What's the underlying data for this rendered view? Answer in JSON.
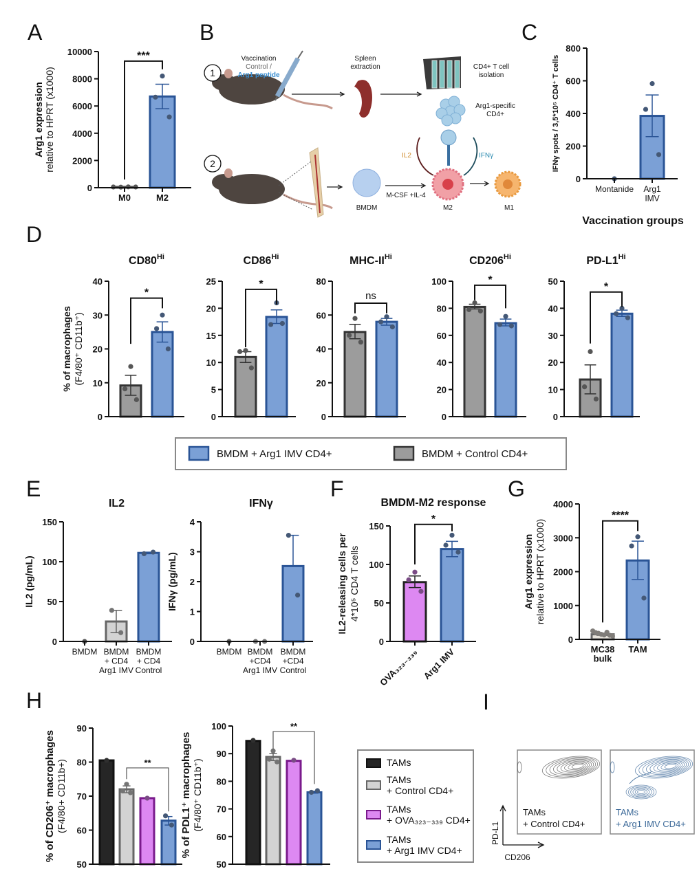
{
  "panel_letters": [
    "A",
    "B",
    "C",
    "D",
    "E",
    "F",
    "G",
    "H",
    "I"
  ],
  "colors": {
    "arg1_imv_fill": "#7ba0d6",
    "arg1_imv_stroke": "#2a5496",
    "control_fill": "#9c9c9c",
    "control_stroke": "#333333",
    "light_grey_fill": "#d3d3d3",
    "light_grey_stroke": "#666666",
    "ova_fill": "#dd88f2",
    "ova_stroke": "#7a1a8c",
    "tams_fill": "#262626"
  },
  "panel_B": {
    "step1": "1",
    "step2": "2",
    "vaccination": "Vaccination",
    "control": "Control /",
    "arg1_peptide": "Arg1 peptide",
    "spleen": [
      "Spleen",
      "extraction"
    ],
    "cd4_isolation": [
      "CD4+ T cell",
      "isolation"
    ],
    "arg1_specific": [
      "Arg1-specific",
      "CD4+"
    ],
    "il2": "IL2",
    "ifng": "IFNγ",
    "bmdm": "BMDM",
    "mcsf": "M-CSF +IL-4",
    "m2": "M2",
    "m1": "M1"
  },
  "legend_D": [
    {
      "label": "BMDM + Arg1 IMV CD4+",
      "fill": "#7ba0d6",
      "stroke": "#2a5496"
    },
    {
      "label": "BMDM + Control CD4+",
      "fill": "#9c9c9c",
      "stroke": "#333333"
    }
  ],
  "legend_H": [
    {
      "lines": [
        "TAMs"
      ],
      "fill": "#262626",
      "stroke": "#111111"
    },
    {
      "lines": [
        "TAMs",
        "+ Control CD4+"
      ],
      "fill": "#d3d3d3",
      "stroke": "#666666"
    },
    {
      "lines": [
        "TAMs",
        "+ OVA₃₂₃₋₃₃₉ CD4+"
      ],
      "fill": "#dd88f2",
      "stroke": "#7a1a8c"
    },
    {
      "lines": [
        "TAMs",
        "+ Arg1 IMV CD4+"
      ],
      "fill": "#7ba0d6",
      "stroke": "#2a5496"
    }
  ],
  "panel_I": {
    "y_axis": "PD-L1",
    "x_axis": "CD206",
    "plots": [
      {
        "lines": [
          "TAMs",
          "+ Control CD4+"
        ],
        "color": "#555555"
      },
      {
        "lines": [
          "TAMs",
          "+ Arg1 IMV CD4+"
        ],
        "color": "#3d6a99"
      }
    ]
  },
  "chart_data": [
    {
      "panel": "A",
      "type": "bar",
      "title": "",
      "title_sup": "",
      "ylabel": [
        "Arg1 expression",
        "relative to HPRT (x1000)"
      ],
      "ylim": [
        0,
        10000
      ],
      "yticks": [
        0,
        2000,
        4000,
        6000,
        8000,
        10000
      ],
      "categories": [
        [
          "M0"
        ],
        [
          "M2"
        ]
      ],
      "category_style": "bold",
      "bars": [
        {
          "value": 60,
          "error": [
            40,
            80
          ],
          "points": [
            50,
            40,
            60,
            50
          ],
          "fill": "#9c9c9c",
          "stroke": "#555555"
        },
        {
          "value": 6700,
          "error": [
            5800,
            7600
          ],
          "points": [
            8200,
            6650,
            5200
          ],
          "fill": "#7ba0d6",
          "stroke": "#2a5496"
        }
      ],
      "significance": {
        "label": "***",
        "from": 0,
        "to": 1,
        "level": 9300,
        "feet": [
          600,
          8700
        ]
      }
    },
    {
      "panel": "C",
      "type": "bar",
      "title": "",
      "title_sup": "",
      "ylabel": [
        "IFNγ spots / 3,5*10⁵ CD4⁺ T cells"
      ],
      "xlabel": "Vaccination groups",
      "ylim": [
        0,
        800
      ],
      "yticks": [
        0,
        200,
        400,
        600,
        800
      ],
      "categories": [
        [
          "Montanide"
        ],
        [
          "Arg1",
          "IMV"
        ]
      ],
      "category_style": "normal",
      "bars": [
        {
          "value": 0,
          "error": [
            0,
            0
          ],
          "points": [
            0
          ],
          "fill": "#7ba0d6",
          "stroke": "#2a5496"
        },
        {
          "value": 385,
          "error": [
            258,
            513
          ],
          "points": [
            583,
            425,
            148
          ],
          "fill": "#7ba0d6",
          "stroke": "#2a5496"
        }
      ]
    },
    {
      "panel": "D",
      "type": "bar",
      "title": "CD80",
      "title_sup": "Hi",
      "ylabel": [
        "% of macrophages",
        "(F4/80⁺ CD11b⁺)"
      ],
      "ylim": [
        0,
        40
      ],
      "yticks": [
        0,
        10,
        20,
        30,
        40
      ],
      "categories": [],
      "category_style": "normal",
      "bars": [
        {
          "value": 9.2,
          "error": [
            6.3,
            12.2
          ],
          "points": [
            14.8,
            8.2,
            5.0
          ],
          "fill": "#9c9c9c",
          "stroke": "#333333"
        },
        {
          "value": 25,
          "error": [
            22,
            28
          ],
          "points": [
            30,
            26,
            20
          ],
          "fill": "#7ba0d6",
          "stroke": "#2a5496"
        }
      ],
      "significance": {
        "label": "*",
        "from": 0,
        "to": 1,
        "level": 35,
        "feet": [
          21.5,
          32
        ]
      }
    },
    {
      "panel": "D",
      "type": "bar",
      "title": "CD86",
      "title_sup": "Hi",
      "ylabel": [],
      "ylim": [
        0,
        25
      ],
      "yticks": [
        0,
        5,
        10,
        15,
        20,
        25
      ],
      "categories": [],
      "category_style": "normal",
      "bars": [
        {
          "value": 11,
          "error": [
            10,
            12
          ],
          "points": [
            12.2,
            12,
            9
          ],
          "fill": "#9c9c9c",
          "stroke": "#333333"
        },
        {
          "value": 18.4,
          "error": [
            17.2,
            19.7
          ],
          "points": [
            21,
            17,
            17.2
          ],
          "fill": "#7ba0d6",
          "stroke": "#2a5496"
        }
      ],
      "significance": {
        "label": "*",
        "from": 0,
        "to": 1,
        "level": 23.5,
        "feet": [
          12.8,
          20.7
        ]
      }
    },
    {
      "panel": "D",
      "type": "bar",
      "title": "MHC-II",
      "title_sup": "Hi",
      "ylabel": [],
      "ylim": [
        0,
        80
      ],
      "yticks": [
        0,
        20,
        40,
        60,
        80
      ],
      "categories": [],
      "category_style": "normal",
      "bars": [
        {
          "value": 50,
          "error": [
            46,
            54.5
          ],
          "points": [
            58,
            48,
            44
          ],
          "fill": "#9c9c9c",
          "stroke": "#333333"
        },
        {
          "value": 56,
          "error": [
            54,
            58
          ],
          "points": [
            59,
            56,
            53
          ],
          "fill": "#7ba0d6",
          "stroke": "#2a5496"
        }
      ],
      "significance": {
        "label": "ns",
        "from": 0,
        "to": 1,
        "level": 67,
        "feet": [
          61,
          61
        ]
      }
    },
    {
      "panel": "D",
      "type": "bar",
      "title": "CD206",
      "title_sup": "Hi",
      "ylabel": [],
      "ylim": [
        0,
        100
      ],
      "yticks": [
        0,
        20,
        40,
        60,
        80,
        100
      ],
      "categories": [],
      "category_style": "normal",
      "bars": [
        {
          "value": 81,
          "error": [
            79.5,
            83
          ],
          "points": [
            84,
            79,
            78
          ],
          "fill": "#9c9c9c",
          "stroke": "#333333"
        },
        {
          "value": 69,
          "error": [
            67,
            72
          ],
          "points": [
            74,
            68,
            67
          ],
          "fill": "#7ba0d6",
          "stroke": "#2a5496"
        }
      ],
      "significance": {
        "label": "*",
        "from": 0,
        "to": 1,
        "level": 97,
        "feet": [
          86,
          80
        ]
      }
    },
    {
      "panel": "D",
      "type": "bar",
      "title": "PD-L1",
      "title_sup": "Hi",
      "ylabel": [],
      "ylim": [
        0,
        50
      ],
      "yticks": [
        0,
        10,
        20,
        30,
        40,
        50
      ],
      "categories": [],
      "category_style": "normal",
      "bars": [
        {
          "value": 13.7,
          "error": [
            8.4,
            19.1
          ],
          "points": [
            24,
            11,
            6.5
          ],
          "fill": "#9c9c9c",
          "stroke": "#333333"
        },
        {
          "value": 38,
          "error": [
            37,
            39.3
          ],
          "points": [
            40,
            38,
            36.5
          ],
          "fill": "#7ba0d6",
          "stroke": "#2a5496"
        }
      ],
      "significance": {
        "label": "*",
        "from": 0,
        "to": 1,
        "level": 46,
        "feet": [
          27,
          40.5
        ]
      }
    },
    {
      "panel": "E",
      "type": "bar",
      "title": "IL2",
      "title_sup": "",
      "ylabel": [
        "IL2 (pg/mL)"
      ],
      "ylim": [
        0,
        150
      ],
      "yticks": [
        0,
        50,
        100,
        150
      ],
      "categories": [
        [
          "BMDM"
        ],
        [
          "BMDM",
          "+ CD4",
          "Arg1 IMV"
        ],
        [
          "BMDM",
          "+ CD4",
          "Control"
        ]
      ],
      "category_style": "normal",
      "bars": [
        {
          "value": 0,
          "error": [
            0,
            0
          ],
          "points": [
            0
          ],
          "fill": "#9c9c9c",
          "stroke": "#333333"
        },
        {
          "value": 25,
          "error": [
            11,
            39
          ],
          "points": [
            39,
            11
          ],
          "fill": "#d3d3d3",
          "stroke": "#666666"
        },
        {
          "value": 111,
          "error": [
            110,
            112
          ],
          "points": [
            110,
            112
          ],
          "fill": "#7ba0d6",
          "stroke": "#2a5496"
        }
      ]
    },
    {
      "panel": "E",
      "type": "bar",
      "title": "IFNγ",
      "title_sup": "",
      "ylabel": [
        "IFNγ (pg/mL)"
      ],
      "ylim": [
        0,
        4
      ],
      "yticks": [
        0,
        1,
        2,
        3,
        4
      ],
      "categories": [
        [
          "BMDM"
        ],
        [
          "BMDM",
          "+CD4",
          "Arg1 IMV"
        ],
        [
          "BMDM",
          "+CD4",
          "Control"
        ]
      ],
      "category_style": "normal",
      "bars": [
        {
          "value": 0,
          "error": [
            0,
            0
          ],
          "points": [
            0
          ],
          "fill": "#9c9c9c",
          "stroke": "#333333"
        },
        {
          "value": 0,
          "error": [
            0,
            0
          ],
          "points": [
            0,
            0
          ],
          "fill": "#d3d3d3",
          "stroke": "#888888"
        },
        {
          "value": 2.52,
          "error": [
            2.52,
            3.55
          ],
          "points": [
            3.55,
            1.55
          ],
          "fill": "#7ba0d6",
          "stroke": "#2a5496"
        }
      ]
    },
    {
      "panel": "F",
      "type": "bar",
      "title": "BMDM-M2 response",
      "title_sup": "",
      "ylabel": [
        "IL2-releasing cells per",
        "4*10⁵ CD4 T cells"
      ],
      "ylim": [
        0,
        150
      ],
      "yticks": [
        0,
        50,
        100,
        150
      ],
      "categories": [
        [
          "OVA₃₂₃₋₃₃₉"
        ],
        [
          "Arg1 IMV"
        ]
      ],
      "category_style": "rotated",
      "bars": [
        {
          "value": 77,
          "error": [
            70,
            85
          ],
          "points": [
            90,
            80,
            65
          ],
          "fill": "#dd88f2",
          "stroke": "#222222"
        },
        {
          "value": 120,
          "error": [
            110,
            130
          ],
          "points": [
            138,
            125,
            116
          ],
          "fill": "#7ba0d6",
          "stroke": "#2a5496"
        }
      ],
      "significance": {
        "label": "*",
        "from": 0,
        "to": 1,
        "level": 152,
        "feet": [
          100,
          143
        ]
      }
    },
    {
      "panel": "G",
      "type": "bar",
      "title": "",
      "title_sup": "",
      "ylabel": [
        "Arg1 expression",
        "relative to HPRT (x1000)"
      ],
      "ylim": [
        0,
        4000
      ],
      "yticks": [
        0,
        1000,
        2000,
        3000,
        4000
      ],
      "categories": [
        [
          "MC38",
          "bulk"
        ],
        [
          "TAM"
        ]
      ],
      "category_style": "bold",
      "bars": [
        {
          "value": 150,
          "error": [
            120,
            180
          ],
          "points": [
            250,
            200,
            180,
            150,
            130,
            210,
            120,
            100
          ],
          "fill": "#e8e4dc",
          "stroke": "#666666"
        },
        {
          "value": 2330,
          "error": [
            1770,
            2900
          ],
          "points": [
            3030,
            2760,
            1220
          ],
          "fill": "#7ba0d6",
          "stroke": "#2a5496"
        }
      ],
      "significance": {
        "label": "****",
        "from": 0,
        "to": 1,
        "level": 3500,
        "feet": [
          500,
          3200
        ]
      }
    },
    {
      "panel": "H",
      "type": "bar",
      "title": "",
      "title_sup": "",
      "ylabel": [
        "% of CD206⁺ macrophages",
        "(F4/80+ CD11b+)"
      ],
      "ylim": [
        50,
        90
      ],
      "yticks": [
        50,
        60,
        70,
        80,
        90
      ],
      "categories": [],
      "category_style": "normal",
      "bars": [
        {
          "value": 80.5,
          "error": [
            80.5,
            80.5
          ],
          "points": [
            80.5
          ],
          "fill": "#262626",
          "stroke": "#111111"
        },
        {
          "value": 72,
          "error": [
            71,
            73
          ],
          "points": [
            73.5,
            71.5,
            71
          ],
          "fill": "#d3d3d3",
          "stroke": "#666666"
        },
        {
          "value": 69.4,
          "error": [
            69.4,
            69.4
          ],
          "points": [
            69.4
          ],
          "fill": "#dd88f2",
          "stroke": "#7a1a8c"
        },
        {
          "value": 62.8,
          "error": [
            61.5,
            64
          ],
          "points": [
            64.2,
            61.5
          ],
          "fill": "#7ba0d6",
          "stroke": "#2a5496"
        }
      ],
      "significance": {
        "label": "**",
        "from": 1,
        "to": 3,
        "level": 78.3,
        "feet": [
          75,
          65.5
        ]
      }
    },
    {
      "panel": "H",
      "type": "bar",
      "title": "",
      "title_sup": "",
      "ylabel": [
        "% of PDL1⁺ macrophages",
        "(F4/80⁺ CD11b⁺)"
      ],
      "ylim": [
        50,
        100
      ],
      "yticks": [
        50,
        60,
        70,
        80,
        90,
        100
      ],
      "categories": [],
      "category_style": "normal",
      "bars": [
        {
          "value": 94.6,
          "error": [
            94.6,
            94.6
          ],
          "points": [
            94.8
          ],
          "fill": "#262626",
          "stroke": "#111111"
        },
        {
          "value": 88.8,
          "error": [
            87.5,
            90
          ],
          "points": [
            91,
            88,
            87
          ],
          "fill": "#d3d3d3",
          "stroke": "#666666"
        },
        {
          "value": 87.4,
          "error": [
            87.4,
            87.4
          ],
          "points": [
            87.6
          ],
          "fill": "#dd88f2",
          "stroke": "#7a1a8c"
        },
        {
          "value": 76,
          "error": [
            75.7,
            76.4
          ],
          "points": [
            76,
            76.6
          ],
          "fill": "#7ba0d6",
          "stroke": "#2a5496"
        }
      ],
      "significance": {
        "label": "**",
        "from": 1,
        "to": 3,
        "level": 98,
        "feet": [
          91.5,
          79
        ]
      }
    }
  ]
}
